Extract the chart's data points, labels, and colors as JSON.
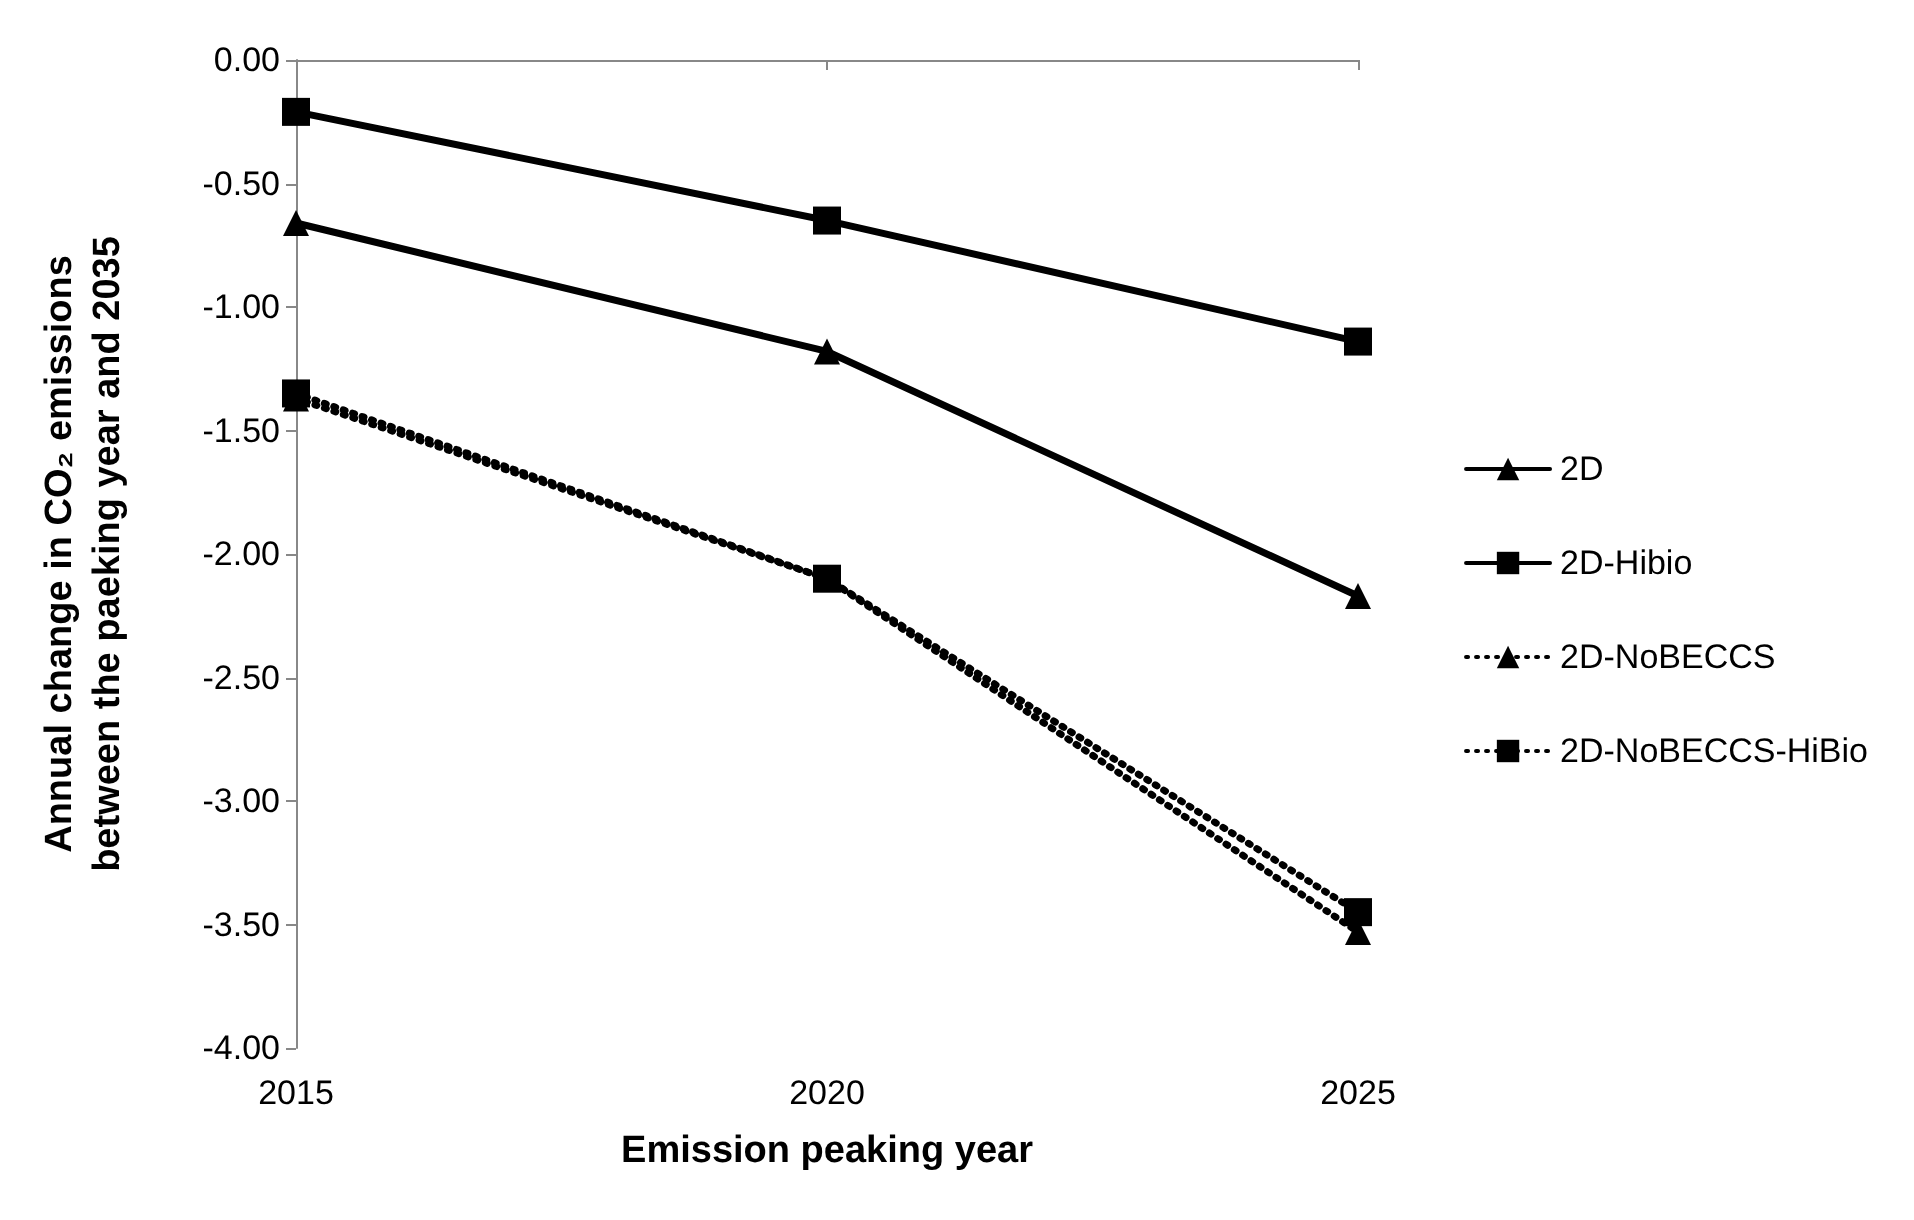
{
  "chart_data": {
    "type": "line",
    "xlabel": "Emission peaking year",
    "ylabel": "Annual change in CO₂ emissions\nbetween the paeking year and 2035",
    "categories": [
      "2015",
      "2020",
      "2025"
    ],
    "series": [
      {
        "name": "2D",
        "color": "#000000",
        "marker": "triangle",
        "line_style": "solid",
        "values": [
          -0.66,
          -1.18,
          -2.17
        ]
      },
      {
        "name": "2D-Hibio",
        "color": "#000000",
        "marker": "square",
        "line_style": "solid",
        "values": [
          -0.21,
          -0.65,
          -1.14
        ]
      },
      {
        "name": "2D-NoBECCS",
        "color": "#000000",
        "marker": "triangle",
        "line_style": "dotted",
        "values": [
          -1.37,
          -2.1,
          -3.53
        ]
      },
      {
        "name": "2D-NoBECCS-HiBio",
        "color": "#000000",
        "marker": "square",
        "line_style": "dotted",
        "values": [
          -1.35,
          -2.1,
          -3.45
        ]
      }
    ],
    "ylim": [
      -4,
      0
    ],
    "yticks": [
      {
        "value": -4,
        "label": "-4.00"
      },
      {
        "value": -3.5,
        "label": "-3.50"
      },
      {
        "value": -3,
        "label": "-3.00"
      },
      {
        "value": -2.5,
        "label": "-2.50"
      },
      {
        "value": -2,
        "label": "-2.00"
      },
      {
        "value": -1.5,
        "label": "-1.50"
      },
      {
        "value": -1,
        "label": "-1.00"
      },
      {
        "value": -0.5,
        "label": "-0.50"
      },
      {
        "value": 0,
        "label": "0.00"
      }
    ],
    "grid": false,
    "legend": "right"
  }
}
